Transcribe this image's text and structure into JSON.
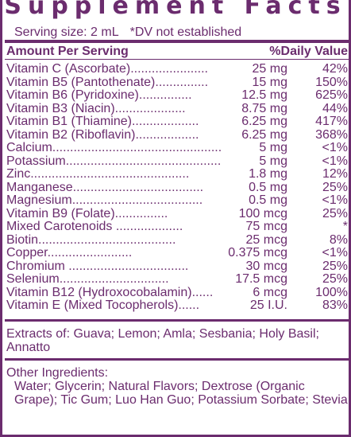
{
  "title": "Supplement Facts",
  "serving": {
    "size": "Serving size: 2 mL",
    "dv_note": "*DV not established"
  },
  "header": {
    "amount": "Amount Per Serving",
    "daily": "%Daily Value"
  },
  "rows": [
    {
      "name": "Vitamin C (Ascorbate)......................",
      "amount": "25 mg",
      "dv": "42%"
    },
    {
      "name": "Vitamin B5 (Pantothenate)...............",
      "amount": "15 mg",
      "dv": "150%"
    },
    {
      "name": "Vitamin B6 (Pyridoxine)...............",
      "amount": "12.5 mg",
      "dv": "625%"
    },
    {
      "name": "Vitamin B3 (Niacin)....................",
      "amount": "8.75 mg",
      "dv": "44%"
    },
    {
      "name": "Vitamin B1 (Thiamine)...................",
      "amount": "6.25 mg",
      "dv": "417%"
    },
    {
      "name": "Vitamin B2 (Riboflavin)..................",
      "amount": "6.25 mg",
      "dv": "368%"
    },
    {
      "name": "Calcium................................................",
      "amount": "5 mg",
      "dv": "<1%"
    },
    {
      "name": "Potassium............................................",
      "amount": "5 mg",
      "dv": "<1%"
    },
    {
      "name": "Zinc.............................................",
      "amount": "1.8 mg",
      "dv": "12%"
    },
    {
      "name": "Manganese.....................................",
      "amount": "0.5 mg",
      "dv": "25%"
    },
    {
      "name": "Magnesium.....................................",
      "amount": "0.5 mg",
      "dv": "<1%"
    },
    {
      "name": "Vitamin B9 (Folate)...............",
      "amount": "100 mcg",
      "dv": "25%"
    },
    {
      "name": "Mixed Carotenoids ...................",
      "amount": "75 mcg",
      "dv": "*"
    },
    {
      "name": "Biotin.......................................",
      "amount": "25 mcg",
      "dv": "8%"
    },
    {
      "name": "Copper........................",
      "amount": "0.375 mcg",
      "dv": "<1%"
    },
    {
      "name": "Chromium ..................................",
      "amount": "30 mcg",
      "dv": "25%"
    },
    {
      "name": "Selenium...............................",
      "amount": "17.5 mcg",
      "dv": "25%"
    },
    {
      "name": "Vitamin B12 (Hydroxocobalamin)......",
      "amount": "6 mcg",
      "dv": "100%"
    },
    {
      "name": "Vitamin E (Mixed Tocopherols)......",
      "amount": "25 I.U.",
      "dv": "83%"
    }
  ],
  "extracts": "Extracts of: Guava; Lemon; Amla; Sesbania; Holy Basil; Annatto",
  "other": {
    "label": "Other Ingredients:",
    "text": "Water; Glycerin; Natural Flavors; Dextrose (Organic Grape); Tic Gum; Luo Han Guo; Potassium Sorbate; Stevia"
  },
  "colors": {
    "ink": "#6b2c6e",
    "background": "#ffffff"
  }
}
